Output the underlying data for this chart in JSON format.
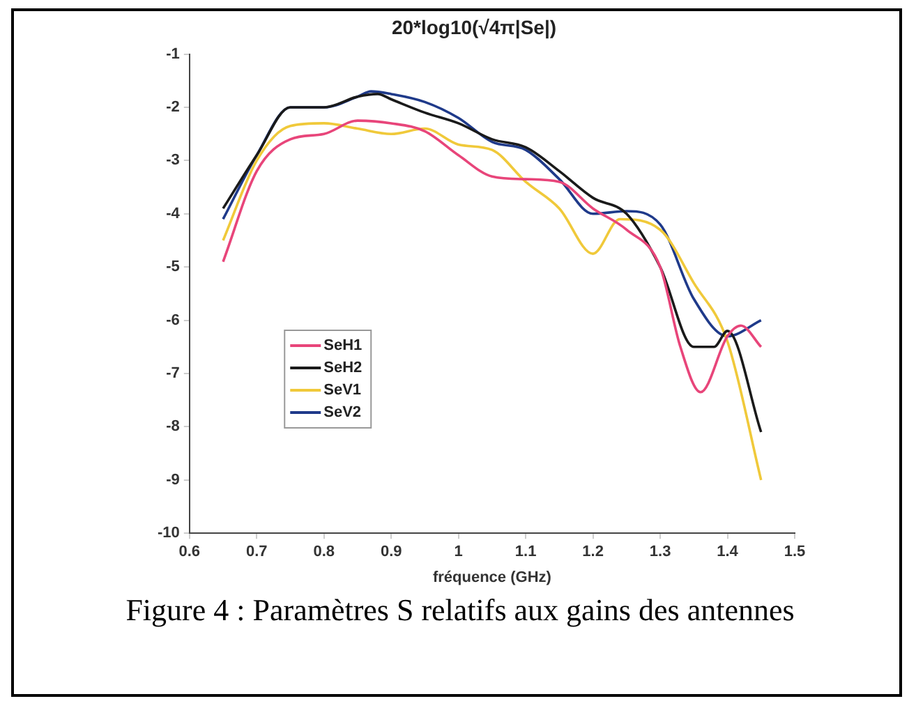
{
  "chart_data": {
    "type": "line",
    "title": "20*log10(√4π|Se|)",
    "xlabel": "fréquence (GHz)",
    "annotations": [
      "Figure 4 : Paramètres S relatifs aux gains des antennes"
    ],
    "xlim": [
      0.6,
      1.5
    ],
    "xticks": [
      0.6,
      0.7,
      0.8,
      0.9,
      1,
      1.1,
      1.2,
      1.3,
      1.4,
      1.5
    ],
    "ylim": [
      -10,
      -1
    ],
    "yticks": [
      -10,
      -9,
      -8,
      -7,
      -6,
      -5,
      -4,
      -3,
      -2,
      -1
    ],
    "grid": false,
    "legend": "bottom left",
    "marker": "none",
    "line_style": "solid",
    "x": [
      0.65,
      0.7,
      0.75,
      0.8,
      0.85,
      0.9,
      0.95,
      1.0,
      1.05,
      1.1,
      1.15,
      1.2,
      1.25,
      1.3,
      1.33,
      1.36,
      1.4,
      1.42,
      1.45
    ],
    "series": [
      {
        "name": "SeH1",
        "color": "#e8457a",
        "values": [
          -4.9,
          -3.2,
          -2.6,
          -2.5,
          -2.25,
          -2.3,
          -2.45,
          -2.9,
          -3.3,
          -3.35,
          -3.4,
          -3.9,
          -4.3,
          -5.0,
          -6.5,
          -7.35,
          -6.3,
          -6.1,
          -6.5
        ]
      },
      {
        "name": "SeH2",
        "color": "#1a1a1a",
        "x": [
          0.65,
          0.7,
          0.75,
          0.8,
          0.85,
          0.88,
          0.9,
          0.95,
          1.0,
          1.05,
          1.1,
          1.15,
          1.2,
          1.25,
          1.3,
          1.35,
          1.38,
          1.4,
          1.45
        ],
        "values": [
          -3.9,
          -2.9,
          -2.0,
          -2.0,
          -1.8,
          -1.75,
          -1.85,
          -2.1,
          -2.3,
          -2.6,
          -2.75,
          -3.2,
          -3.7,
          -4.0,
          -5.0,
          -6.5,
          -6.5,
          -6.2,
          -8.1
        ]
      },
      {
        "name": "SeV1",
        "color": "#f0c93a",
        "x": [
          0.65,
          0.7,
          0.75,
          0.8,
          0.85,
          0.9,
          0.95,
          1.0,
          1.05,
          1.1,
          1.15,
          1.2,
          1.24,
          1.3,
          1.35,
          1.4,
          1.45
        ],
        "values": [
          -4.5,
          -3.0,
          -2.35,
          -2.3,
          -2.4,
          -2.5,
          -2.4,
          -2.7,
          -2.8,
          -3.4,
          -3.9,
          -4.75,
          -4.1,
          -4.3,
          -5.3,
          -6.4,
          -9.0
        ]
      },
      {
        "name": "SeV2",
        "color": "#1f3a8a",
        "x": [
          0.65,
          0.7,
          0.75,
          0.8,
          0.85,
          0.87,
          0.9,
          0.95,
          1.0,
          1.05,
          1.1,
          1.15,
          1.2,
          1.25,
          1.3,
          1.35,
          1.4,
          1.45
        ],
        "values": [
          -4.1,
          -2.9,
          -2.0,
          -2.0,
          -1.8,
          -1.7,
          -1.75,
          -1.9,
          -2.2,
          -2.65,
          -2.8,
          -3.35,
          -4.0,
          -3.95,
          -4.2,
          -5.6,
          -6.3,
          -6.0
        ]
      }
    ]
  }
}
